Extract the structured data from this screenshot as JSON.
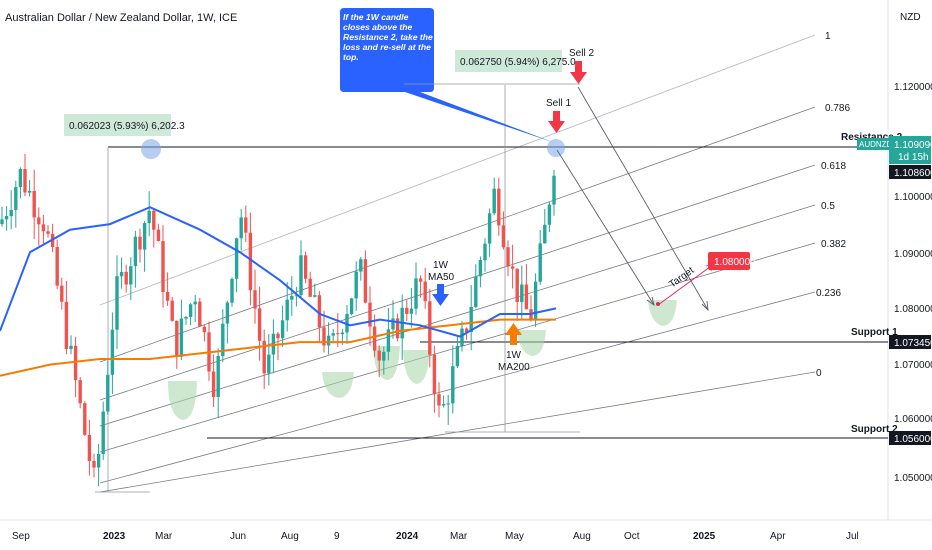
{
  "header": {
    "title": "Australian Dollar / New Zealand Dollar, 1W, ICE",
    "currency": "NZD"
  },
  "chart_data": {
    "type": "candlestick",
    "title": "Australian Dollar / New Zealand Dollar, 1W, ICE",
    "currency": "NZD",
    "y_ticks": [
      "1.120000",
      "1.100000",
      "1.090000",
      "1.080000",
      "1.070000",
      "1.060000",
      "1.050000"
    ],
    "x_ticks": [
      "Sep",
      "2023",
      "Mar",
      "Jun",
      "Aug",
      "9",
      "2024",
      "Mar",
      "May",
      "Aug",
      "Oct",
      "2025",
      "Apr",
      "Jul"
    ],
    "price_tags": [
      {
        "id": "current",
        "label": "AUDNZD",
        "value": "1.109090",
        "sub": "1d 15h",
        "color": "#26a69a"
      },
      {
        "id": "resistance",
        "label": "",
        "value": "1.108600",
        "sub": "",
        "color": "#131722"
      },
      {
        "id": "support1",
        "label": "",
        "value": "1.073450",
        "sub": "",
        "color": "#131722"
      },
      {
        "id": "support2",
        "label": "",
        "value": "1.056000",
        "sub": "",
        "color": "#131722"
      }
    ],
    "levels": [
      {
        "name": "Resistance 2",
        "value": 1.1086
      },
      {
        "name": "Support 1",
        "value": 1.07345
      },
      {
        "name": "Support 2",
        "value": 1.056
      }
    ],
    "fib_levels": [
      "1",
      "0.786",
      "0.618",
      "0.5",
      "0.382",
      "0.236",
      "0"
    ],
    "measures": [
      {
        "text": "0.062023 (5.93%) 6,202.3"
      },
      {
        "text": "0.062750 (5.94%) 6,275.0"
      }
    ],
    "annotations": {
      "callout": "If the 1W candle closes above the Resistance 2, take the loss and re-sell at the top.",
      "sell1": "Sell 1",
      "sell2": "Sell 2",
      "ma50": [
        "1W",
        "MA50"
      ],
      "ma200": [
        "1W",
        "MA200"
      ],
      "target": "Target",
      "target_price": "1.080000"
    },
    "colors": {
      "up": "#26a69a",
      "down": "#ef5350",
      "ma50": "#2962ff",
      "ma200": "#f57c00",
      "callout": "#2962ff",
      "fib": "#131722",
      "target_tag": "#f23645"
    }
  }
}
